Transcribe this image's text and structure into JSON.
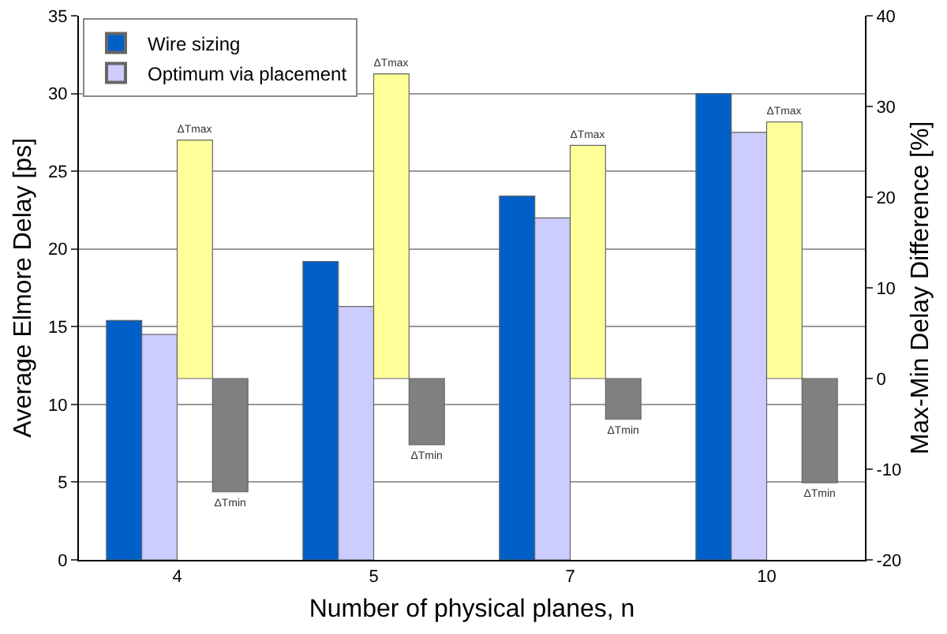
{
  "chart_data": {
    "type": "bar",
    "xlabel": "Number of physical planes, n",
    "ylabel": "Average Elmore Delay [ps]",
    "y2label": "Max-Min Delay Difference [%]",
    "categories": [
      "4",
      "5",
      "7",
      "10"
    ],
    "series": [
      {
        "name": "Wire sizing",
        "color": "#0060c8",
        "values": [
          15.4,
          19.2,
          23.4,
          30.0
        ]
      },
      {
        "name": "Optimum via placement",
        "color": "#ccccff",
        "values": [
          14.5,
          16.3,
          22.0,
          27.5
        ]
      },
      {
        "name": "ΔTmax",
        "color": "#ffff99",
        "values": [
          26.3,
          33.6,
          25.7,
          28.3
        ],
        "axis": "y2"
      },
      {
        "name": "ΔTmin",
        "color": "#808080",
        "values": [
          -12.5,
          -7.3,
          -4.5,
          -11.5
        ],
        "axis": "y2"
      }
    ],
    "ylim": [
      0,
      35
    ],
    "yticks": [
      0,
      5,
      10,
      15,
      20,
      25,
      30,
      35
    ],
    "y2lim": [
      -20,
      40
    ],
    "y2ticks": [
      -20,
      -10,
      0,
      10,
      20,
      30,
      40
    ],
    "grid": "y",
    "legend": "top left"
  }
}
